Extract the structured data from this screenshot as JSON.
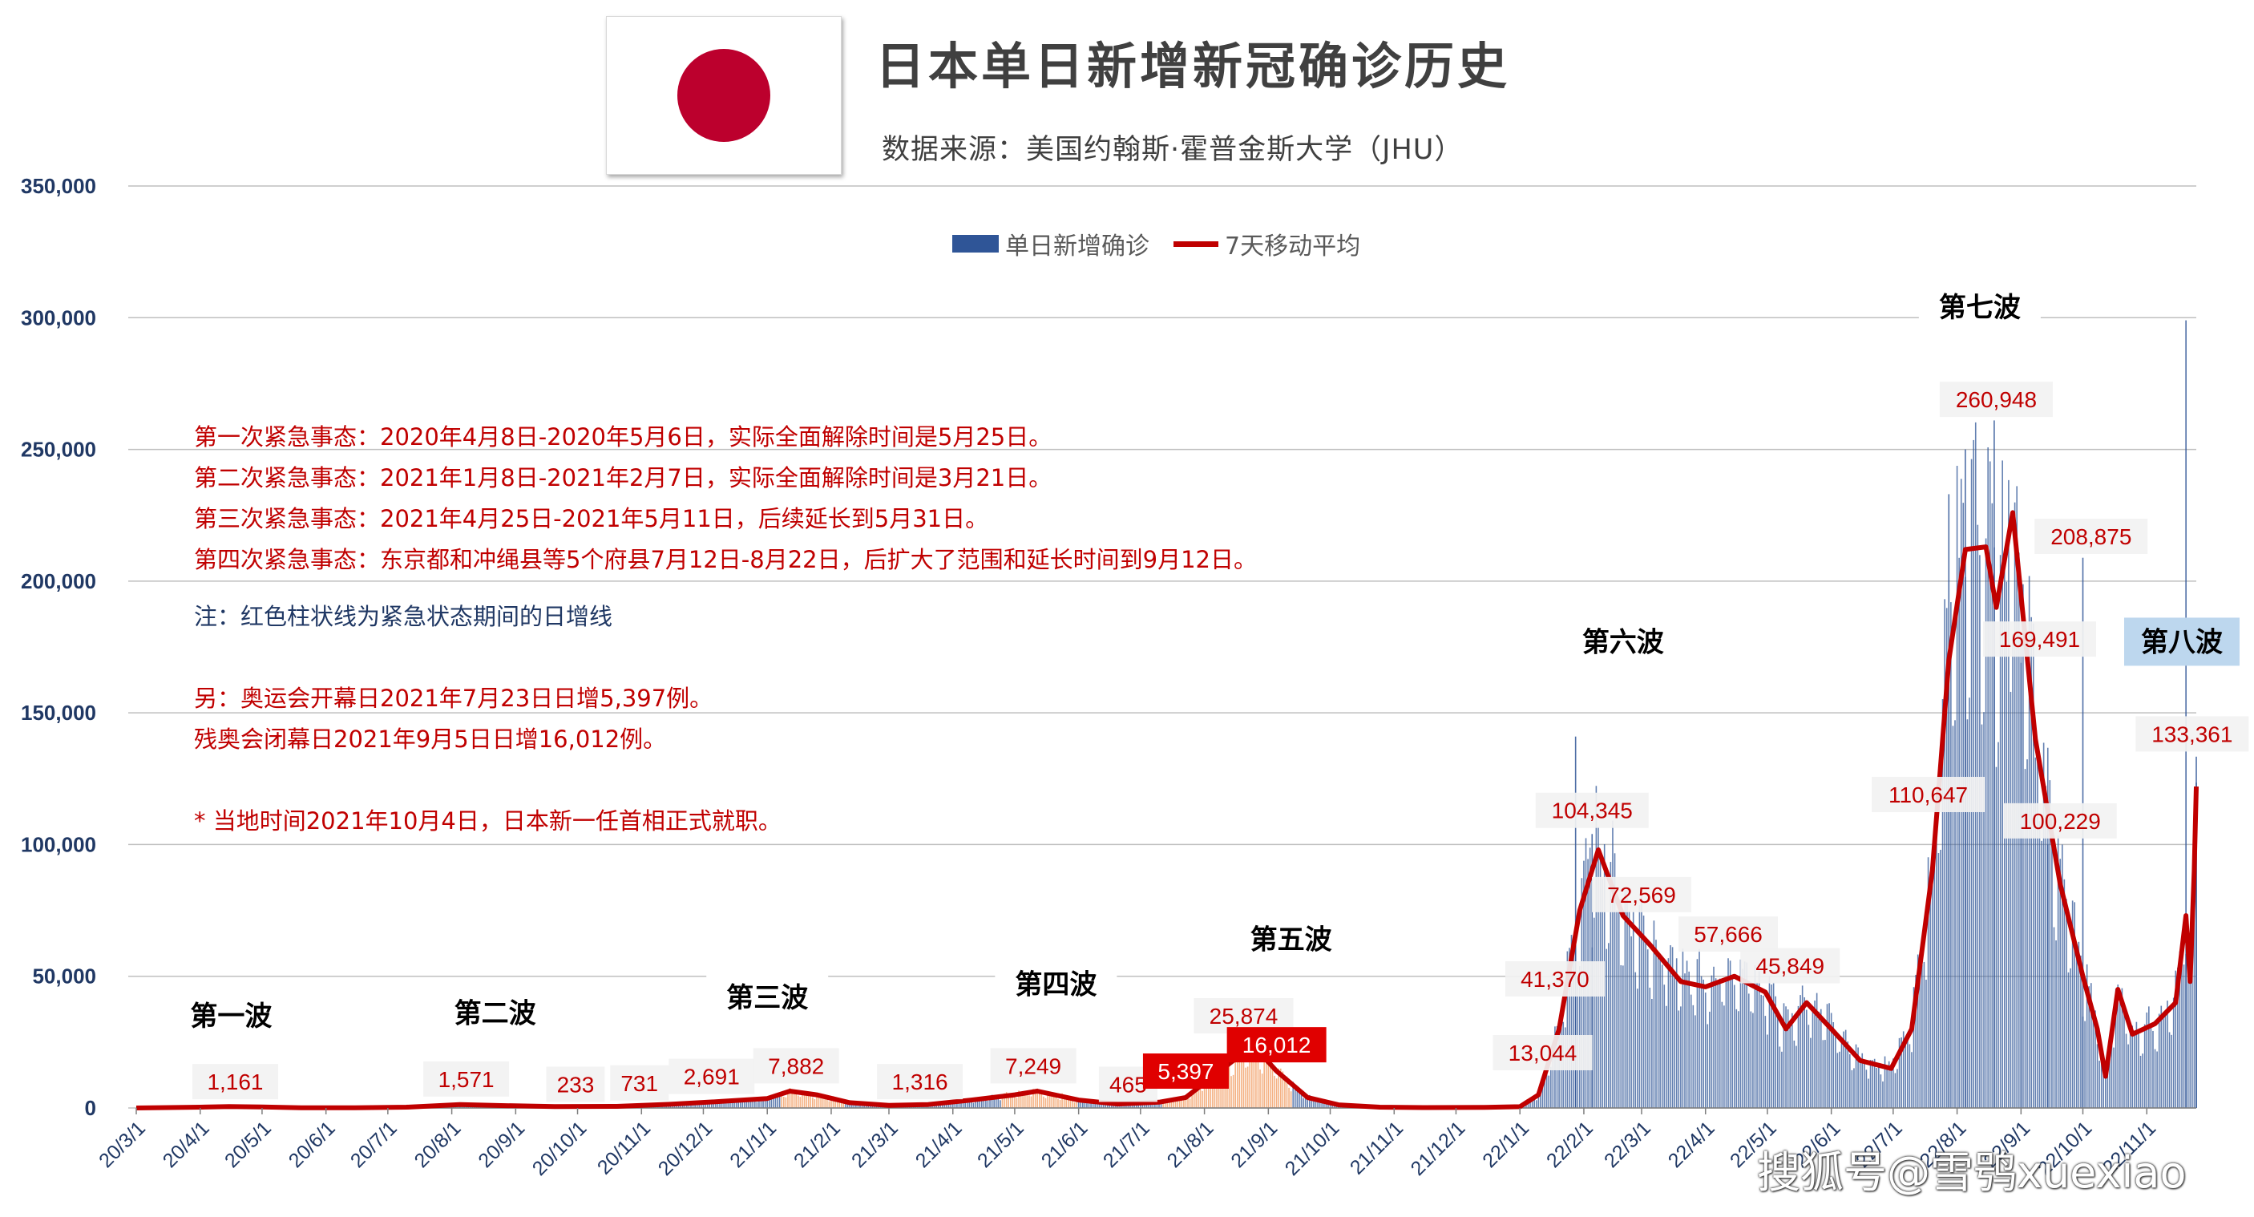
{
  "title": "日本单日新增新冠确诊历史",
  "subtitle": "数据来源：美国约翰斯·霍普金斯大学（JHU）",
  "legend": {
    "bars": "单日新增确诊",
    "line": "7天移动平均"
  },
  "notes": [
    "第一次紧急事态：2020年4月8日-2020年5月6日，实际全面解除时间是5月25日。",
    "第二次紧急事态：2021年1月8日-2021年2月7日，实际全面解除时间是3月21日。",
    "第三次紧急事态：2021年4月25日-2021年5月11日，后续延长到5月31日。",
    "第四次紧急事态：东京都和冲绳县等5个府县7月12日-8月22日，后扩大了范围和延长时间到9月12日。",
    "注：红色柱状线为紧急状态期间的日增线",
    "另：奥运会开幕日2021年7月23日日增5,397例。",
    "残奥会闭幕日2021年9月5日日增16,012例。",
    "* 当地时间2021年10月4日，日本新一任首相正式就职。"
  ],
  "watermark": "搜狐号@雪鸮xuexiao",
  "colors": {
    "bars": "#2F5597",
    "emergency_bars": "#F4B183",
    "line": "#C00000",
    "grid": "#BFBFBF",
    "axis_text": "#203864"
  },
  "chart_data": {
    "type": "bar",
    "ylim": [
      0,
      350000
    ],
    "yticks": [
      "0",
      "50,000",
      "100,000",
      "150,000",
      "200,000",
      "250,000",
      "300,000",
      "350,000"
    ],
    "x_ticks": [
      "20/3/1",
      "20/4/1",
      "20/5/1",
      "20/6/1",
      "20/7/1",
      "20/8/1",
      "20/9/1",
      "20/10/1",
      "20/11/1",
      "20/12/1",
      "21/1/1",
      "21/2/1",
      "21/3/1",
      "21/4/1",
      "21/5/1",
      "21/6/1",
      "21/7/1",
      "21/8/1",
      "21/9/1",
      "21/10/1",
      "21/11/1",
      "21/12/1",
      "22/1/1",
      "22/2/1",
      "22/3/1",
      "22/4/1",
      "22/5/1",
      "22/6/1",
      "22/7/1",
      "22/8/1",
      "22/9/1",
      "22/10/1",
      "22/11/1"
    ],
    "x_range": [
      "2020-03-01",
      "2022-11-25"
    ],
    "moving_average_7d": [
      [
        "2020-03-01",
        10
      ],
      [
        "2020-04-01",
        300
      ],
      [
        "2020-04-15",
        560
      ],
      [
        "2020-05-01",
        400
      ],
      [
        "2020-05-20",
        60
      ],
      [
        "2020-06-15",
        60
      ],
      [
        "2020-07-10",
        300
      ],
      [
        "2020-08-05",
        1300
      ],
      [
        "2020-08-25",
        900
      ],
      [
        "2020-09-20",
        540
      ],
      [
        "2020-10-20",
        600
      ],
      [
        "2020-11-15",
        1400
      ],
      [
        "2020-12-10",
        2500
      ],
      [
        "2021-01-01",
        3600
      ],
      [
        "2021-01-12",
        6400
      ],
      [
        "2021-01-25",
        5000
      ],
      [
        "2021-02-10",
        2000
      ],
      [
        "2021-03-01",
        1000
      ],
      [
        "2021-03-20",
        1300
      ],
      [
        "2021-04-10",
        3000
      ],
      [
        "2021-05-01",
        5000
      ],
      [
        "2021-05-12",
        6400
      ],
      [
        "2021-06-01",
        3000
      ],
      [
        "2021-06-20",
        1500
      ],
      [
        "2021-07-10",
        2200
      ],
      [
        "2021-07-23",
        4000
      ],
      [
        "2021-08-05",
        12000
      ],
      [
        "2021-08-15",
        18000
      ],
      [
        "2021-08-25",
        23500
      ],
      [
        "2021-09-05",
        14000
      ],
      [
        "2021-09-20",
        4000
      ],
      [
        "2021-10-05",
        1200
      ],
      [
        "2021-10-25",
        300
      ],
      [
        "2021-11-15",
        150
      ],
      [
        "2021-12-15",
        200
      ],
      [
        "2022-01-01",
        500
      ],
      [
        "2022-01-10",
        5000
      ],
      [
        "2022-01-20",
        30000
      ],
      [
        "2022-01-30",
        75000
      ],
      [
        "2022-02-08",
        98000
      ],
      [
        "2022-02-20",
        73000
      ],
      [
        "2022-03-05",
        62000
      ],
      [
        "2022-03-20",
        48000
      ],
      [
        "2022-04-01",
        46000
      ],
      [
        "2022-04-15",
        50000
      ],
      [
        "2022-04-30",
        44000
      ],
      [
        "2022-05-10",
        30000
      ],
      [
        "2022-05-20",
        40000
      ],
      [
        "2022-06-01",
        30000
      ],
      [
        "2022-06-15",
        18000
      ],
      [
        "2022-06-30",
        15000
      ],
      [
        "2022-07-10",
        30000
      ],
      [
        "2022-07-20",
        90000
      ],
      [
        "2022-07-28",
        170000
      ],
      [
        "2022-08-05",
        212000
      ],
      [
        "2022-08-15",
        213000
      ],
      [
        "2022-08-20",
        190000
      ],
      [
        "2022-08-28",
        226000
      ],
      [
        "2022-09-08",
        140000
      ],
      [
        "2022-09-20",
        85000
      ],
      [
        "2022-10-01",
        50000
      ],
      [
        "2022-10-08",
        30000
      ],
      [
        "2022-10-12",
        12000
      ],
      [
        "2022-10-18",
        45000
      ],
      [
        "2022-10-25",
        28000
      ],
      [
        "2022-11-05",
        32000
      ],
      [
        "2022-11-15",
        40000
      ],
      [
        "2022-11-20",
        73000
      ],
      [
        "2022-11-22",
        48000
      ],
      [
        "2022-11-24",
        90000
      ],
      [
        "2022-11-25",
        122000
      ]
    ],
    "daily_bars": [
      [
        "2022-01-28",
        141000
      ],
      [
        "2022-02-05",
        104000
      ],
      [
        "2022-07-28",
        233000
      ],
      [
        "2022-08-05",
        250000
      ],
      [
        "2022-08-19",
        261000
      ],
      [
        "2022-09-01",
        169000
      ],
      [
        "2022-09-14",
        100000
      ],
      [
        "2022-10-01",
        208875
      ],
      [
        "2022-11-20",
        299000
      ],
      [
        "2022-11-25",
        133361
      ]
    ],
    "data_labels": [
      {
        "text": "1,161",
        "date": "2020-04-18",
        "y": 10000
      },
      {
        "text": "1,571",
        "date": "2020-08-08",
        "y": 11000
      },
      {
        "text": "233",
        "date": "2020-09-30",
        "y": 9000
      },
      {
        "text": "731",
        "date": "2020-10-31",
        "y": 9500
      },
      {
        "text": "2,691",
        "date": "2020-12-05",
        "y": 12000
      },
      {
        "text": "7,882",
        "date": "2021-01-15",
        "y": 16000
      },
      {
        "text": "1,316",
        "date": "2021-03-16",
        "y": 10000
      },
      {
        "text": "7,249",
        "date": "2021-05-10",
        "y": 16000
      },
      {
        "text": "465",
        "date": "2021-06-25",
        "y": 9000
      },
      {
        "text": "5,397",
        "date": "2021-07-23",
        "y": 14000,
        "style": "box"
      },
      {
        "text": "25,874",
        "date": "2021-08-20",
        "y": 35000
      },
      {
        "text": "16,012",
        "date": "2021-09-05",
        "y": 24000,
        "style": "box"
      },
      {
        "text": "13,044",
        "date": "2022-01-12",
        "y": 21000
      },
      {
        "text": "41,370",
        "date": "2022-01-18",
        "y": 49000
      },
      {
        "text": "104,345",
        "date": "2022-02-05",
        "y": 113000
      },
      {
        "text": "72,569",
        "date": "2022-03-01",
        "y": 81000
      },
      {
        "text": "57,666",
        "date": "2022-04-12",
        "y": 66000
      },
      {
        "text": "45,849",
        "date": "2022-05-12",
        "y": 54000
      },
      {
        "text": "110,647",
        "date": "2022-07-18",
        "y": 119000
      },
      {
        "text": "260,948",
        "date": "2022-08-20",
        "y": 269000
      },
      {
        "text": "169,491",
        "date": "2022-09-10",
        "y": 178000
      },
      {
        "text": "100,229",
        "date": "2022-09-20",
        "y": 109000
      },
      {
        "text": "208,875",
        "date": "2022-10-05",
        "y": 217000
      },
      {
        "text": "133,361",
        "date": "2022-11-23",
        "y": 142000
      }
    ],
    "wave_labels": [
      {
        "text": "第一波",
        "date": "2020-04-16",
        "y": 35000
      },
      {
        "text": "第二波",
        "date": "2020-08-22",
        "y": 36000
      },
      {
        "text": "第三波",
        "date": "2021-01-01",
        "y": 42000
      },
      {
        "text": "第四波",
        "date": "2021-05-21",
        "y": 47000
      },
      {
        "text": "第五波",
        "date": "2021-09-12",
        "y": 64000
      },
      {
        "text": "第六波",
        "date": "2022-02-20",
        "y": 177000
      },
      {
        "text": "第七波",
        "date": "2022-08-12",
        "y": 304000
      },
      {
        "text": "第八波",
        "date": "2022-11-18",
        "y": 177000,
        "style": "highlight"
      }
    ]
  }
}
